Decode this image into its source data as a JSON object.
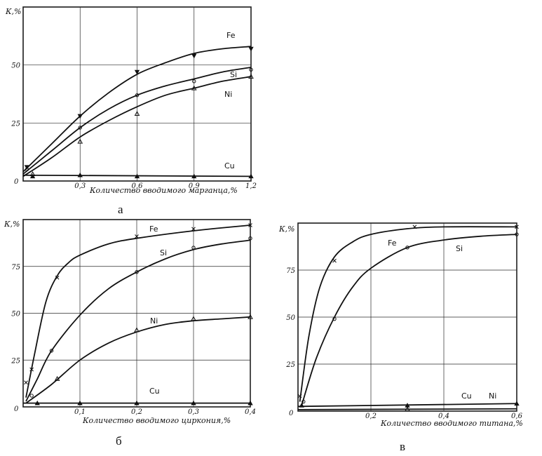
{
  "chart_data": [
    {
      "type": "line",
      "panel_label": "а",
      "ylabel": "К,%",
      "xlabel": "Количество вводимого марганца,%",
      "xlim": [
        0,
        1.2
      ],
      "ylim": [
        0,
        75
      ],
      "x_ticks": [
        0.3,
        0.6,
        0.9,
        1.2
      ],
      "x_tick_labels": [
        "0,3",
        "0,6",
        "0,9",
        "1,2"
      ],
      "y_ticks": [
        25,
        50
      ],
      "y_tick_labels": [
        "25",
        "50"
      ],
      "origin_label": "0",
      "series": [
        {
          "name": "Fe",
          "marker": "triangle-down",
          "points": [
            [
              0.02,
              6
            ],
            [
              0.3,
              28
            ],
            [
              0.6,
              47
            ],
            [
              0.9,
              54
            ],
            [
              1.2,
              57
            ]
          ],
          "curve": [
            [
              0.0,
              4
            ],
            [
              0.15,
              16
            ],
            [
              0.3,
              28
            ],
            [
              0.45,
              38
            ],
            [
              0.6,
              46
            ],
            [
              0.75,
              51
            ],
            [
              0.9,
              55
            ],
            [
              1.05,
              57
            ],
            [
              1.2,
              58
            ]
          ]
        },
        {
          "name": "Si",
          "marker": "circle",
          "points": [
            [
              0.02,
              5
            ],
            [
              0.3,
              23
            ],
            [
              0.6,
              37
            ],
            [
              0.9,
              43
            ],
            [
              1.2,
              48
            ]
          ],
          "curve": [
            [
              0.0,
              3
            ],
            [
              0.15,
              13
            ],
            [
              0.3,
              23
            ],
            [
              0.45,
              31
            ],
            [
              0.6,
              37
            ],
            [
              0.75,
              41
            ],
            [
              0.9,
              44
            ],
            [
              1.05,
              47
            ],
            [
              1.2,
              49
            ]
          ]
        },
        {
          "name": "Ni",
          "marker": "triangle",
          "points": [
            [
              0.05,
              3
            ],
            [
              0.3,
              17
            ],
            [
              0.6,
              29
            ],
            [
              0.9,
              40
            ],
            [
              1.2,
              45
            ]
          ],
          "curve": [
            [
              0.0,
              2
            ],
            [
              0.15,
              10
            ],
            [
              0.3,
              19
            ],
            [
              0.45,
              26
            ],
            [
              0.6,
              32
            ],
            [
              0.75,
              37
            ],
            [
              0.9,
              40
            ],
            [
              1.05,
              43
            ],
            [
              1.2,
              45
            ]
          ]
        },
        {
          "name": "Cu",
          "marker": "filled-triangle",
          "points": [
            [
              0.05,
              2
            ],
            [
              0.3,
              2.5
            ],
            [
              0.6,
              2
            ],
            [
              0.9,
              2
            ],
            [
              1.2,
              2
            ]
          ],
          "curve": [
            [
              0.0,
              2.5
            ],
            [
              1.2,
              2
            ]
          ]
        }
      ]
    },
    {
      "type": "line",
      "panel_label": "б",
      "ylabel": "К,%",
      "xlabel": "Количество вводимого циркония,%",
      "xlim": [
        0,
        0.4
      ],
      "ylim": [
        0,
        100
      ],
      "x_ticks": [
        0.1,
        0.2,
        0.3,
        0.4
      ],
      "x_tick_labels": [
        "0,1",
        "0,2",
        "0,3",
        "0,4"
      ],
      "y_ticks": [
        25,
        50,
        75
      ],
      "y_tick_labels": [
        "25",
        "50",
        "75"
      ],
      "origin_label": "0",
      "series": [
        {
          "name": "Fe",
          "marker": "cross",
          "points": [
            [
              0.005,
              13
            ],
            [
              0.015,
              20
            ],
            [
              0.06,
              69
            ],
            [
              0.2,
              91
            ],
            [
              0.3,
              95
            ],
            [
              0.4,
              97
            ]
          ],
          "curve": [
            [
              0.005,
              5
            ],
            [
              0.02,
              28
            ],
            [
              0.04,
              56
            ],
            [
              0.06,
              70
            ],
            [
              0.08,
              77
            ],
            [
              0.1,
              81
            ],
            [
              0.15,
              87
            ],
            [
              0.2,
              90
            ],
            [
              0.3,
              94
            ],
            [
              0.4,
              97
            ]
          ]
        },
        {
          "name": "Si",
          "marker": "circle",
          "points": [
            [
              0.015,
              6
            ],
            [
              0.05,
              30
            ],
            [
              0.2,
              72
            ],
            [
              0.3,
              85
            ],
            [
              0.4,
              90
            ]
          ],
          "curve": [
            [
              0.005,
              3
            ],
            [
              0.025,
              15
            ],
            [
              0.05,
              30
            ],
            [
              0.1,
              49
            ],
            [
              0.15,
              63
            ],
            [
              0.2,
              72
            ],
            [
              0.25,
              79
            ],
            [
              0.3,
              84
            ],
            [
              0.35,
              87
            ],
            [
              0.4,
              89
            ]
          ]
        },
        {
          "name": "Ni",
          "marker": "triangle",
          "points": [
            [
              0.06,
              15
            ],
            [
              0.2,
              41
            ],
            [
              0.3,
              47
            ],
            [
              0.4,
              48
            ]
          ],
          "curve": [
            [
              0.005,
              2
            ],
            [
              0.05,
              12
            ],
            [
              0.1,
              25
            ],
            [
              0.15,
              34
            ],
            [
              0.2,
              40
            ],
            [
              0.25,
              44
            ],
            [
              0.3,
              46
            ],
            [
              0.35,
              47
            ],
            [
              0.4,
              48
            ]
          ]
        },
        {
          "name": "Cu",
          "marker": "filled-triangle",
          "points": [
            [
              0.025,
              2
            ],
            [
              0.1,
              2
            ],
            [
              0.2,
              2
            ],
            [
              0.3,
              2
            ],
            [
              0.4,
              2
            ]
          ],
          "curve": [
            [
              0.0,
              2
            ],
            [
              0.4,
              2
            ]
          ]
        }
      ]
    },
    {
      "type": "line",
      "panel_label": "в",
      "ylabel": "К,%",
      "xlabel": "Количество вводимого титана,%",
      "xlim": [
        0,
        0.6
      ],
      "ylim": [
        0,
        100
      ],
      "x_ticks": [
        0.2,
        0.4,
        0.6
      ],
      "x_tick_labels": [
        "0,2",
        "0,4",
        "0,6"
      ],
      "y_ticks": [
        25,
        50,
        75
      ],
      "y_tick_labels": [
        "25",
        "50",
        "75"
      ],
      "origin_label": "0",
      "series": [
        {
          "name": "Fe",
          "marker": "cross",
          "points": [
            [
              0.005,
              8
            ],
            [
              0.1,
              80
            ],
            [
              0.32,
              98
            ],
            [
              0.6,
              98
            ]
          ],
          "curve": [
            [
              0.005,
              5
            ],
            [
              0.03,
              40
            ],
            [
              0.06,
              66
            ],
            [
              0.1,
              82
            ],
            [
              0.15,
              90
            ],
            [
              0.2,
              94
            ],
            [
              0.3,
              97
            ],
            [
              0.4,
              98
            ],
            [
              0.6,
              98
            ]
          ]
        },
        {
          "name": "Si",
          "marker": "circle",
          "points": [
            [
              0.015,
              5
            ],
            [
              0.1,
              49
            ],
            [
              0.3,
              87
            ],
            [
              0.6,
              94
            ]
          ],
          "curve": [
            [
              0.01,
              3
            ],
            [
              0.05,
              28
            ],
            [
              0.1,
              50
            ],
            [
              0.15,
              66
            ],
            [
              0.2,
              76
            ],
            [
              0.3,
              87
            ],
            [
              0.4,
              91
            ],
            [
              0.5,
              93
            ],
            [
              0.6,
              94
            ]
          ]
        },
        {
          "name": "Cu",
          "marker": "filled-triangle",
          "points": [
            [
              0.01,
              3
            ],
            [
              0.3,
              3
            ],
            [
              0.6,
              4
            ]
          ],
          "curve": [
            [
              0.0,
              2.5
            ],
            [
              0.6,
              4
            ]
          ]
        },
        {
          "name": "Ni",
          "marker": "triangle",
          "points": [
            [
              0.3,
              1
            ]
          ],
          "curve": [
            [
              0.0,
              0.8
            ],
            [
              0.6,
              1.2
            ]
          ]
        }
      ]
    }
  ]
}
